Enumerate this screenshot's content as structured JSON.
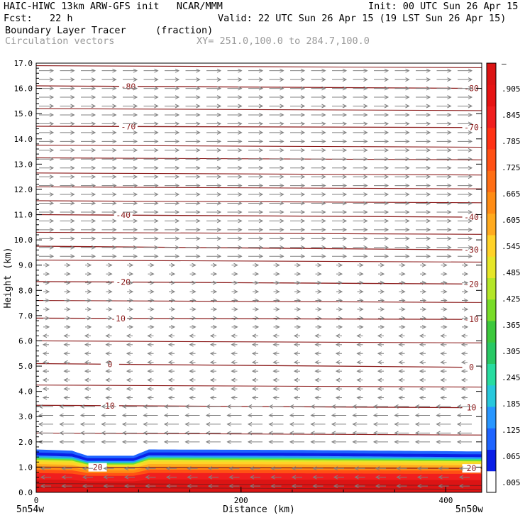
{
  "header": {
    "title_left": "HAIC-HIWC 13km ARW-GFS init   NCAR/MMM",
    "init": "Init: 00 UTC Sun 26 Apr 15",
    "fcst": "Fcst:   22 h",
    "valid": "Valid: 22 UTC Sun 26 Apr 15 (19 LST Sun 26 Apr 15)",
    "field": "Boundary Layer Tracer",
    "units": "(fraction)",
    "vectors": "Circulation vectors",
    "xsec": "XY= 251.0,100.0 to 284.7,100.0"
  },
  "colors": {
    "contour": "#8b1a1a",
    "vector": "#808080",
    "frame": "#000000"
  },
  "chart_data": {
    "type": "heatmap",
    "ylabel": "Height (km)",
    "xlabel": "Distance (km)",
    "ylim": [
      0,
      17
    ],
    "xlim": [
      0,
      435
    ],
    "yticks": [
      "0.0",
      "1.0",
      "2.0",
      "3.0",
      "4.0",
      "5.0",
      "6.0",
      "7.0",
      "8.0",
      "9.0",
      "10.0",
      "11.0",
      "12.0",
      "13.0",
      "14.0",
      "15.0",
      "16.0",
      "17.0"
    ],
    "xticks": [
      {
        "value": 0,
        "label": "0"
      },
      {
        "value": 200,
        "label": "200"
      },
      {
        "value": 400,
        "label": "400"
      }
    ],
    "endpoints": {
      "left": "5n54w",
      "right": "5n50w"
    },
    "colorbar": {
      "labels": [
        ".005",
        ".065",
        ".125",
        ".185",
        ".245",
        ".305",
        ".365",
        ".425",
        ".485",
        ".545",
        ".605",
        ".665",
        ".725",
        ".785",
        ".845",
        ".905",
        "–"
      ],
      "colors": [
        "#ffffff",
        "#0a1ee6",
        "#1e64ff",
        "#2896ff",
        "#28c8dc",
        "#28dca0",
        "#28c864",
        "#3cc83c",
        "#78dc28",
        "#b4e628",
        "#e6e628",
        "#ffd228",
        "#ffaa1e",
        "#ff8c14",
        "#ff6e14",
        "#ff5014",
        "#ff3214",
        "#f01e1e",
        "#e61414",
        "#dc1414"
      ]
    },
    "tracer_top_km": [
      {
        "x": 0,
        "h": 1.7
      },
      {
        "x": 35,
        "h": 1.65
      },
      {
        "x": 50,
        "h": 1.45
      },
      {
        "x": 95,
        "h": 1.45
      },
      {
        "x": 110,
        "h": 1.7
      },
      {
        "x": 250,
        "h": 1.68
      },
      {
        "x": 435,
        "h": 1.62
      }
    ],
    "temperature_contours": [
      {
        "value": -80,
        "label": "-80",
        "y_left": 16.1,
        "y_right": 16.0,
        "label_x": [
          90,
          425
        ]
      },
      {
        "value": -70,
        "label": "-70",
        "y_left": 14.5,
        "y_right": 14.45,
        "label_x": [
          90,
          425
        ]
      },
      {
        "value": -40,
        "label": "-40",
        "y_left": 11.0,
        "y_right": 10.9,
        "label_x": [
          85,
          425
        ]
      },
      {
        "value": -30,
        "label": "-30",
        "y_left": 9.75,
        "y_right": 9.6,
        "label_x": [
          425
        ]
      },
      {
        "value": -20,
        "label": "-20",
        "y_left": 8.35,
        "y_right": 8.25,
        "label_x": [
          85,
          425
        ]
      },
      {
        "value": -10,
        "label": "-10",
        "y_left": 6.9,
        "y_right": 6.85,
        "label_x": [
          80,
          425
        ]
      },
      {
        "value": 0,
        "label": "0",
        "y_left": 5.1,
        "y_right": 4.95,
        "label_x": [
          72,
          425
        ]
      },
      {
        "value": 10,
        "label": "10",
        "y_left": 3.45,
        "y_right": 3.35,
        "label_x": [
          72,
          425
        ]
      },
      {
        "value": 20,
        "label": "20",
        "y_left": 1.0,
        "y_right": 0.95,
        "label_x": [
          60,
          425
        ]
      }
    ],
    "unlabeled_contours_km": [
      16.9,
      15.2,
      13.75,
      13.25,
      12.65,
      12.1,
      11.55,
      10.3,
      9.2,
      7.6,
      6.0,
      4.25,
      2.35,
      0.35,
      0.2
    ],
    "wind_regimes": [
      {
        "from_km": 9.0,
        "to_km": 17.0,
        "direction": "east",
        "strength": "strong"
      },
      {
        "from_km": 6.5,
        "to_km": 9.0,
        "direction": "east",
        "strength": "weak"
      },
      {
        "from_km": 3.5,
        "to_km": 6.5,
        "direction": "west",
        "strength": "weak"
      },
      {
        "from_km": 1.8,
        "to_km": 3.5,
        "direction": "west",
        "strength": "strong"
      },
      {
        "from_km": 0.0,
        "to_km": 1.0,
        "direction": "west",
        "strength": "moderate"
      }
    ]
  }
}
